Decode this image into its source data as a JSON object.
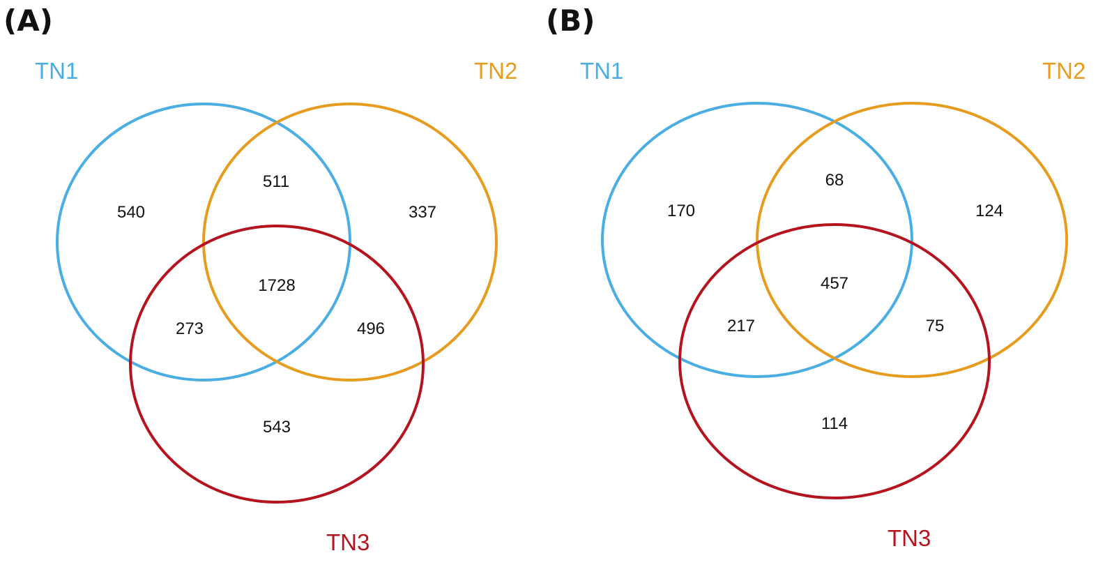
{
  "panels": [
    {
      "label": "(A)",
      "sets": [
        {
          "name": "TN1",
          "color": "#4aaee3"
        },
        {
          "name": "TN2",
          "color": "#e69c1e"
        },
        {
          "name": "TN3",
          "color": "#b5141f"
        }
      ],
      "regions": {
        "TN1_only": 540,
        "TN2_only": 337,
        "TN3_only": 543,
        "TN1_TN2": 511,
        "TN1_TN3": 273,
        "TN2_TN3": 496,
        "TN1_TN2_TN3": 1728
      }
    },
    {
      "label": "(B)",
      "sets": [
        {
          "name": "TN1",
          "color": "#4aaee3"
        },
        {
          "name": "TN2",
          "color": "#e69c1e"
        },
        {
          "name": "TN3",
          "color": "#b5141f"
        }
      ],
      "regions": {
        "TN1_only": 170,
        "TN2_only": 124,
        "TN3_only": 114,
        "TN1_TN2": 68,
        "TN1_TN3": 217,
        "TN2_TN3": 75,
        "TN1_TN2_TN3": 457
      }
    }
  ]
}
